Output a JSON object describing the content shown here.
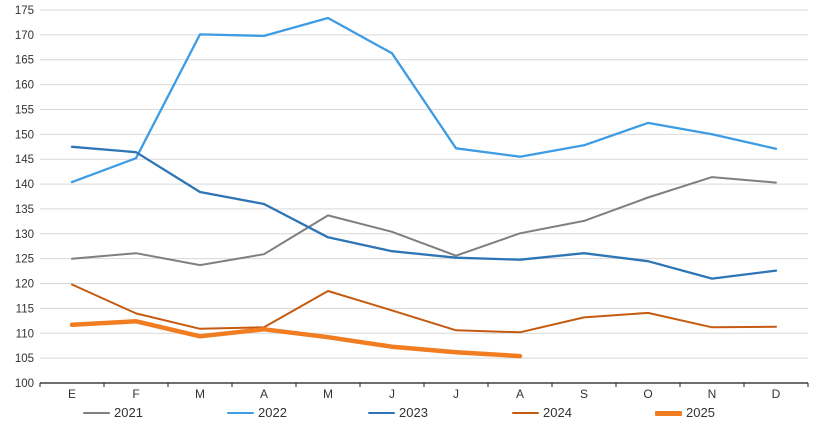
{
  "chart_data": {
    "type": "line",
    "title": "",
    "xlabel": "",
    "ylabel": "",
    "categories": [
      "E",
      "F",
      "M",
      "A",
      "M",
      "J",
      "J",
      "A",
      "S",
      "O",
      "N",
      "D"
    ],
    "series": [
      {
        "name": "2021",
        "color": "#7F7F7F",
        "stroke_width": 2,
        "values": [
          125.0,
          126.1,
          123.7,
          125.9,
          133.7,
          130.4,
          125.6,
          130.1,
          132.6,
          137.3,
          141.4,
          140.3
        ]
      },
      {
        "name": "2022",
        "color": "#3E9CE4",
        "stroke_width": 2.3,
        "values": [
          140.4,
          145.2,
          170.1,
          169.8,
          173.4,
          166.3,
          147.2,
          145.5,
          147.8,
          152.3,
          150.0,
          147.1
        ]
      },
      {
        "name": "2023",
        "color": "#2E75B6",
        "stroke_width": 2.3,
        "values": [
          147.5,
          146.4,
          138.4,
          136.0,
          129.3,
          126.5,
          125.2,
          124.8,
          126.1,
          124.5,
          121.0,
          122.6
        ]
      },
      {
        "name": "2024",
        "color": "#C55A11",
        "stroke_width": 2,
        "values": [
          119.8,
          114.0,
          110.9,
          111.2,
          118.5,
          114.6,
          110.6,
          110.2,
          113.2,
          114.1,
          111.2,
          111.3
        ]
      },
      {
        "name": "2025",
        "color": "#F07D22",
        "stroke_width": 4.5,
        "values": [
          111.7,
          112.4,
          109.4,
          110.8,
          109.2,
          107.3,
          106.2,
          105.4,
          null,
          null,
          null,
          null
        ]
      }
    ],
    "ylim": [
      100,
      175
    ],
    "ytick_step": 5,
    "grid": "horizontal",
    "grid_color": "#D9D9D9",
    "axis_color": "#1A1A1A",
    "label_color": "#333333",
    "legend_position": "bottom"
  }
}
